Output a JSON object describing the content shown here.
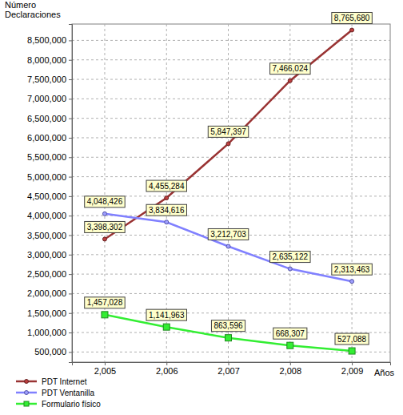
{
  "chart_data": {
    "type": "line",
    "y_label": "Número Declaraciones",
    "x_label": "Años",
    "x": [
      2005,
      2006,
      2007,
      2008,
      2009
    ],
    "xlim": [
      2004.47,
      2009.62
    ],
    "xticks": [
      {
        "value": 2005,
        "label": "2,005"
      },
      {
        "value": 2006,
        "label": "2,006"
      },
      {
        "value": 2007,
        "label": "2,007"
      },
      {
        "value": 2008,
        "label": "2,008"
      },
      {
        "value": 2009,
        "label": "2,009"
      }
    ],
    "ylim": [
      240000,
      8920000
    ],
    "yticks": [
      {
        "value": 500000,
        "label": "500,000"
      },
      {
        "value": 1000000,
        "label": "1,000,000"
      },
      {
        "value": 1500000,
        "label": "1,500,000"
      },
      {
        "value": 2000000,
        "label": "2,000,000"
      },
      {
        "value": 2500000,
        "label": "2,500,000"
      },
      {
        "value": 3000000,
        "label": "3,000,000"
      },
      {
        "value": 3500000,
        "label": "3,500,000"
      },
      {
        "value": 4000000,
        "label": "4,000,000"
      },
      {
        "value": 4500000,
        "label": "4,500,000"
      },
      {
        "value": 5000000,
        "label": "5,000,000"
      },
      {
        "value": 5500000,
        "label": "5,500,000"
      },
      {
        "value": 6000000,
        "label": "6,000,000"
      },
      {
        "value": 6500000,
        "label": "6,500,000"
      },
      {
        "value": 7000000,
        "label": "7,000,000"
      },
      {
        "value": 7500000,
        "label": "7,500,000"
      },
      {
        "value": 8000000,
        "label": "8,000,000"
      },
      {
        "value": 8500000,
        "label": "8,500,000"
      }
    ],
    "grid": true,
    "legend": "bottom",
    "data_labels": true,
    "series": [
      {
        "name": "PDT Internet",
        "color": "#993333",
        "marker": "circle",
        "line_style": "solid",
        "values": [
          3398302,
          4455284,
          5847397,
          7466024,
          8765680
        ],
        "value_labels": [
          "3,398,302",
          "4,455,284",
          "5,847,397",
          "7,466,024",
          "8,765,680"
        ]
      },
      {
        "name": "PDT Ventanilla",
        "color": "#8080ff",
        "marker": "circle",
        "line_style": "solid",
        "values": [
          4048426,
          3834616,
          3212703,
          2635122,
          2313463
        ],
        "value_labels": [
          "4,048,426",
          "3,834,616",
          "3,212,703",
          "2,635,122",
          "2,313,463"
        ]
      },
      {
        "name": "Formulario físico",
        "color": "#33ee33",
        "marker": "square",
        "line_style": "solid",
        "values": [
          1457028,
          1141963,
          863596,
          668307,
          527088
        ],
        "value_labels": [
          "1,457,028",
          "1,141,963",
          "863,596",
          "668,307",
          "527,088"
        ]
      }
    ]
  }
}
